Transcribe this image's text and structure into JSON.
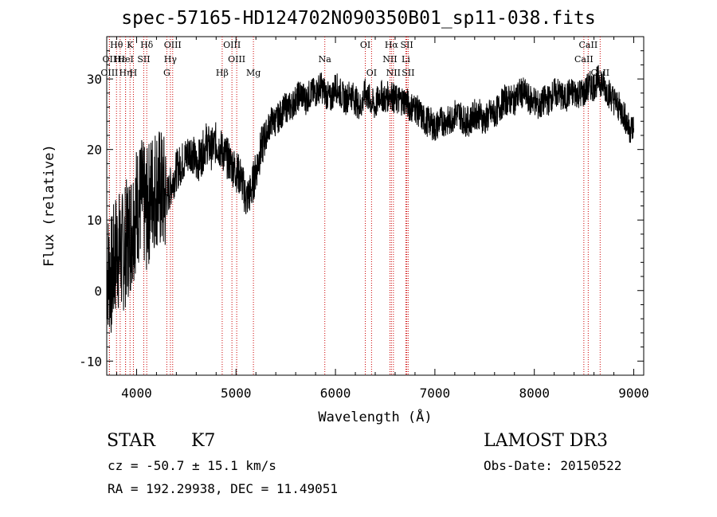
{
  "header": {
    "title": "spec-57165-HD124702N090350B01_sp11-038.fits"
  },
  "info": {
    "class": "STAR",
    "subclass": "K7",
    "survey": "LAMOST DR3",
    "cz": "cz = -50.7 ± 15.1 km/s",
    "obsdate": "Obs-Date: 20150522",
    "coords": "RA = 192.29938, DEC =  11.49051"
  },
  "chart_data": {
    "type": "line",
    "title": "spec-57165-HD124702N090350B01_sp11-038.fits",
    "xlabel": "Wavelength (Å)",
    "ylabel": "Flux (relative)",
    "xlim": [
      3700,
      9100
    ],
    "ylim": [
      -12,
      36
    ],
    "xticks": [
      4000,
      5000,
      6000,
      7000,
      8000,
      9000
    ],
    "yticks": [
      -10,
      0,
      10,
      20,
      30
    ],
    "series": [
      {
        "name": "flux",
        "x": [
          3700,
          3750,
          3800,
          3850,
          3900,
          3950,
          4000,
          4050,
          4100,
          4150,
          4200,
          4250,
          4300,
          4350,
          4400,
          4450,
          4500,
          4550,
          4600,
          4650,
          4700,
          4750,
          4800,
          4850,
          4900,
          4950,
          5000,
          5050,
          5100,
          5150,
          5200,
          5250,
          5300,
          5350,
          5400,
          5450,
          5500,
          5550,
          5600,
          5650,
          5700,
          5750,
          5800,
          5850,
          5900,
          5950,
          6000,
          6050,
          6100,
          6150,
          6200,
          6250,
          6300,
          6350,
          6400,
          6450,
          6500,
          6550,
          6600,
          6650,
          6700,
          6750,
          6800,
          6850,
          6900,
          6950,
          7000,
          7050,
          7100,
          7150,
          7200,
          7250,
          7300,
          7350,
          7400,
          7450,
          7500,
          7550,
          7600,
          7650,
          7700,
          7750,
          7800,
          7850,
          7900,
          7950,
          8000,
          8050,
          8100,
          8150,
          8200,
          8250,
          8300,
          8350,
          8400,
          8450,
          8500,
          8550,
          8600,
          8650,
          8700,
          8750,
          8800,
          8850,
          8900,
          8950,
          9000
        ],
        "y": [
          3,
          2,
          6,
          5,
          7,
          9,
          12,
          13,
          11,
          14,
          15,
          14,
          13,
          15,
          17,
          18,
          19,
          20,
          18,
          19,
          21,
          20,
          21,
          20,
          19,
          18,
          17,
          16,
          13,
          14,
          17,
          20,
          22,
          24,
          24,
          25,
          26,
          26,
          27,
          28,
          27,
          28,
          28,
          29,
          28,
          27,
          29,
          28,
          27,
          28,
          27,
          26,
          28,
          27,
          26,
          28,
          27,
          28,
          27,
          27,
          27,
          26,
          26,
          25,
          24,
          24,
          23,
          24,
          24,
          24,
          25,
          25,
          24,
          24,
          25,
          25,
          24,
          25,
          25,
          26,
          27,
          27,
          27,
          28,
          28,
          27,
          27,
          26,
          27,
          27,
          28,
          28,
          27,
          28,
          28,
          28,
          28,
          29,
          29,
          30,
          29,
          28,
          27,
          26,
          25,
          23,
          23
        ]
      }
    ],
    "line_markers": [
      {
        "label": "Hθ",
        "wave": 3798,
        "row": 0
      },
      {
        "label": "K",
        "wave": 3934,
        "row": 0
      },
      {
        "label": "Hδ",
        "wave": 4102,
        "row": 0
      },
      {
        "label": "OIII",
        "wave": 4363,
        "row": 0
      },
      {
        "label": "OIII",
        "wave": 4959,
        "row": 0
      },
      {
        "label": "OI",
        "wave": 6300,
        "row": 0
      },
      {
        "label": "Hα",
        "wave": 6563,
        "row": 0
      },
      {
        "label": "SII",
        "wave": 6717,
        "row": 0
      },
      {
        "label": "CaII",
        "wave": 8542,
        "row": 0
      },
      {
        "label": "OII",
        "wave": 3727,
        "row": 1
      },
      {
        "label": "Hε",
        "wave": 3835,
        "row": 1
      },
      {
        "label": "HeI",
        "wave": 3889,
        "row": 1
      },
      {
        "label": "SII",
        "wave": 4072,
        "row": 1
      },
      {
        "label": "Hγ",
        "wave": 4340,
        "row": 1
      },
      {
        "label": "OIII",
        "wave": 5007,
        "row": 1
      },
      {
        "label": "Na",
        "wave": 5893,
        "row": 1
      },
      {
        "label": "NII",
        "wave": 6548,
        "row": 1
      },
      {
        "label": "Li",
        "wave": 6708,
        "row": 1
      },
      {
        "label": "CaII",
        "wave": 8498,
        "row": 1
      },
      {
        "label": "OIII",
        "wave": 3727,
        "row": 2
      },
      {
        "label": "Hη",
        "wave": 3889,
        "row": 2
      },
      {
        "label": "H",
        "wave": 3968,
        "row": 2
      },
      {
        "label": "G",
        "wave": 4304,
        "row": 2
      },
      {
        "label": "Hβ",
        "wave": 4861,
        "row": 2
      },
      {
        "label": "Mg",
        "wave": 5175,
        "row": 2
      },
      {
        "label": "OI",
        "wave": 6363,
        "row": 2
      },
      {
        "label": "NII",
        "wave": 6583,
        "row": 2
      },
      {
        "label": "SII",
        "wave": 6731,
        "row": 2
      },
      {
        "label": "CaII",
        "wave": 8662,
        "row": 2
      }
    ]
  }
}
